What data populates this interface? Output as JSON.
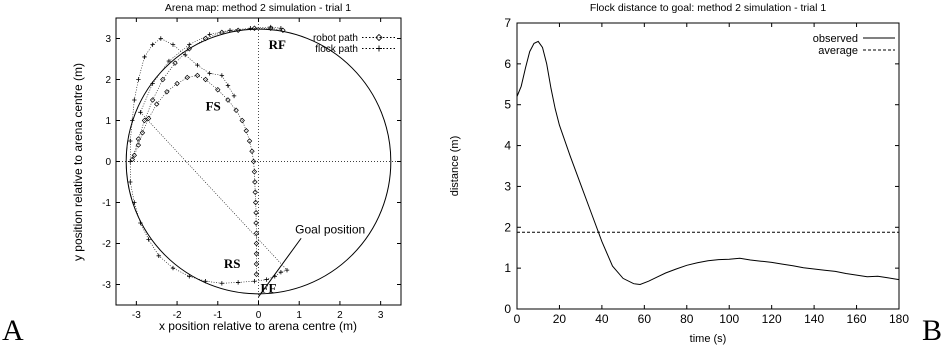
{
  "panel_labels": [
    "A",
    "B"
  ],
  "chart_data": [
    {
      "type": "scatter",
      "title": "Arena map: method 2 simulation - trial 1",
      "xlabel": "x position relative to arena centre (m)",
      "ylabel": "y position relative to arena centre (m)",
      "xlim": [
        -3.5,
        3.5
      ],
      "ylim": [
        -3.5,
        3.5
      ],
      "x_ticks": [
        -3,
        -2,
        -1,
        0,
        1,
        2,
        3
      ],
      "y_ticks": [
        -3,
        -2,
        -1,
        0,
        1,
        2,
        3
      ],
      "arena_radius": 3.25,
      "reference_lines": {
        "x": 0,
        "y": 0,
        "style": "dotted"
      },
      "legend": {
        "position": "top-right",
        "entries": [
          "robot path",
          "flock path"
        ]
      },
      "series": [
        {
          "name": "robot path",
          "marker": "diamond",
          "points": [
            [
              -0.05,
              -2.75
            ],
            [
              -0.05,
              -2.5
            ],
            [
              -0.05,
              -2.25
            ],
            [
              -0.05,
              -2.0
            ],
            [
              -0.05,
              -1.75
            ],
            [
              -0.06,
              -1.5
            ],
            [
              -0.06,
              -1.25
            ],
            [
              -0.07,
              -1.0
            ],
            [
              -0.08,
              -0.75
            ],
            [
              -0.09,
              -0.5
            ],
            [
              -0.1,
              -0.25
            ],
            [
              -0.12,
              0.0
            ],
            [
              -0.16,
              0.25
            ],
            [
              -0.22,
              0.5
            ],
            [
              -0.3,
              0.75
            ],
            [
              -0.4,
              1.0
            ],
            [
              -0.55,
              1.25
            ],
            [
              -0.75,
              1.5
            ],
            [
              -1.0,
              1.75
            ],
            [
              -1.3,
              2.0
            ],
            [
              -1.5,
              2.1
            ],
            [
              -1.75,
              2.05
            ],
            [
              -2.0,
              1.9
            ],
            [
              -2.25,
              1.7
            ],
            [
              -2.5,
              1.4
            ],
            [
              -2.7,
              1.05
            ],
            [
              -2.85,
              0.7
            ],
            [
              -2.95,
              0.4
            ],
            [
              -3.05,
              0.15
            ],
            [
              -3.1,
              0.05
            ],
            [
              -2.95,
              0.55
            ],
            [
              -2.8,
              1.0
            ],
            [
              -2.6,
              1.5
            ],
            [
              -2.35,
              2.0
            ],
            [
              -2.05,
              2.4
            ],
            [
              -1.7,
              2.75
            ],
            [
              -1.3,
              3.0
            ],
            [
              -0.9,
              3.15
            ],
            [
              -0.5,
              3.2
            ],
            [
              -0.1,
              3.25
            ],
            [
              0.3,
              3.25
            ],
            [
              0.6,
              3.2
            ]
          ]
        },
        {
          "name": "flock path",
          "marker": "plus",
          "points": [
            [
              -0.6,
              1.6
            ],
            [
              -0.75,
              1.85
            ],
            [
              -0.9,
              2.1
            ],
            [
              -1.2,
              2.15
            ],
            [
              -1.5,
              2.35
            ],
            [
              -1.8,
              2.6
            ],
            [
              -2.1,
              2.85
            ],
            [
              -2.4,
              3.0
            ],
            [
              -2.6,
              2.85
            ],
            [
              -2.8,
              2.55
            ],
            [
              -2.95,
              2.0
            ],
            [
              -3.05,
              1.5
            ],
            [
              -3.1,
              1.0
            ],
            [
              -3.15,
              0.5
            ],
            [
              -3.15,
              0.0
            ],
            [
              -3.15,
              -0.5
            ],
            [
              -3.05,
              -1.0
            ],
            [
              -2.9,
              -1.5
            ],
            [
              -2.7,
              -1.9
            ],
            [
              -2.45,
              -2.3
            ],
            [
              -2.1,
              -2.6
            ],
            [
              -1.7,
              -2.8
            ],
            [
              -1.3,
              -2.92
            ],
            [
              -0.9,
              -2.97
            ],
            [
              -0.5,
              -2.95
            ],
            [
              -0.1,
              -2.92
            ],
            [
              0.2,
              -2.88
            ],
            [
              0.4,
              -2.8
            ],
            [
              0.55,
              -2.7
            ],
            [
              0.7,
              -2.65
            ],
            [
              -2.9,
              1.2
            ],
            [
              -2.6,
              1.9
            ],
            [
              -2.2,
              2.45
            ],
            [
              -1.7,
              2.85
            ],
            [
              -1.2,
              3.1
            ],
            [
              -0.7,
              3.2
            ],
            [
              -0.2,
              3.25
            ],
            [
              0.3,
              3.28
            ],
            [
              0.55,
              3.25
            ]
          ]
        }
      ],
      "annotations": [
        {
          "text": "RF",
          "x": 0.25,
          "y": 2.75
        },
        {
          "text": "FS",
          "x": -1.3,
          "y": 1.25
        },
        {
          "text": "RS",
          "x": -0.85,
          "y": -2.6
        },
        {
          "text": "FF",
          "x": 0.05,
          "y": -3.2
        },
        {
          "text": "Goal position",
          "x": 0.9,
          "y": -1.75,
          "arrow_to": [
            0.0,
            -3.3
          ]
        }
      ]
    },
    {
      "type": "line",
      "title": "Flock distance to goal: method 2 simulation - trial 1",
      "xlabel": "time (s)",
      "ylabel": "distance (m)",
      "xlim": [
        0,
        180
      ],
      "ylim": [
        0,
        7
      ],
      "x_ticks": [
        0,
        20,
        40,
        60,
        80,
        100,
        120,
        140,
        160,
        180
      ],
      "y_ticks": [
        0,
        1,
        2,
        3,
        4,
        5,
        6,
        7
      ],
      "legend": {
        "position": "top-right"
      },
      "series": [
        {
          "name": "observed",
          "style": "solid",
          "x": [
            0,
            2,
            4,
            6,
            8,
            10,
            12,
            14,
            16,
            18,
            20,
            25,
            30,
            35,
            40,
            45,
            50,
            55,
            58,
            62,
            66,
            70,
            75,
            80,
            85,
            90,
            95,
            100,
            105,
            110,
            115,
            120,
            125,
            130,
            135,
            140,
            145,
            150,
            155,
            160,
            165,
            170,
            175,
            180
          ],
          "y": [
            5.2,
            5.45,
            5.9,
            6.3,
            6.5,
            6.55,
            6.4,
            6.0,
            5.4,
            4.9,
            4.5,
            3.75,
            3.05,
            2.35,
            1.65,
            1.05,
            0.75,
            0.62,
            0.6,
            0.68,
            0.78,
            0.88,
            0.98,
            1.07,
            1.13,
            1.18,
            1.21,
            1.22,
            1.24,
            1.2,
            1.17,
            1.14,
            1.1,
            1.06,
            1.01,
            0.98,
            0.95,
            0.92,
            0.87,
            0.83,
            0.79,
            0.8,
            0.76,
            0.72
          ]
        },
        {
          "name": "average",
          "style": "dashed",
          "x": [
            0,
            180
          ],
          "y": [
            1.88,
            1.88
          ]
        }
      ]
    }
  ]
}
